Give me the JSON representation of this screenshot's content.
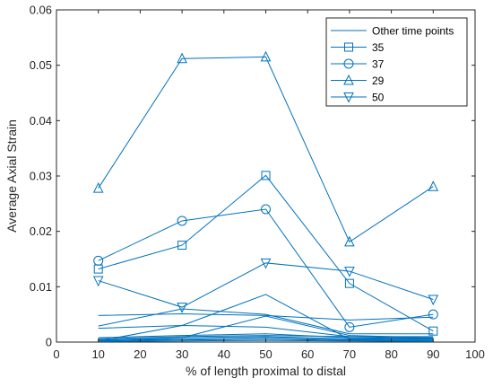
{
  "chart_data": {
    "type": "line",
    "title": "",
    "xlabel": "% of length proximal to distal",
    "ylabel": "Average Axial Strain",
    "xlim": [
      0,
      100
    ],
    "ylim": [
      0,
      0.06
    ],
    "xticks": [
      "0",
      "10",
      "20",
      "30",
      "40",
      "50",
      "60",
      "70",
      "80",
      "90",
      "100"
    ],
    "yticks": [
      "0",
      "0.01",
      "0.02",
      "0.03",
      "0.04",
      "0.05",
      "0.06"
    ],
    "grid": false,
    "legend_position": "top-right",
    "line_color": "#0072bd",
    "x": [
      10,
      30,
      50,
      70,
      90
    ],
    "series": [
      {
        "name": "Other time points",
        "marker": "none",
        "values": [
          0.0048,
          0.0051,
          0.0048,
          0.004,
          0.0045
        ]
      },
      {
        "name": "",
        "marker": "none",
        "values": [
          0.0029,
          0.006,
          0.005,
          0.0015,
          0.0015
        ]
      },
      {
        "name": "",
        "marker": "none",
        "values": [
          0.0025,
          0.003,
          0.0027,
          0.001,
          0.001
        ]
      },
      {
        "name": "",
        "marker": "none",
        "values": [
          0.0002,
          0.003,
          0.0086,
          0.0005,
          0.0005
        ]
      },
      {
        "name": "",
        "marker": "none",
        "values": [
          0.0001,
          0.0008,
          0.0047,
          0.0012,
          0.0008
        ]
      },
      {
        "name": "",
        "marker": "none",
        "values": [
          0.0008,
          0.0012,
          0.0015,
          0.0008,
          0.0006
        ]
      },
      {
        "name": "",
        "marker": "none",
        "values": [
          0.0006,
          0.001,
          0.0012,
          0.001,
          0.0007
        ]
      },
      {
        "name": "",
        "marker": "none",
        "values": [
          0.0004,
          0.0008,
          0.001,
          0.0006,
          0.0005
        ]
      },
      {
        "name": "",
        "marker": "none",
        "values": [
          0.0003,
          0.0005,
          0.0008,
          0.0004,
          0.0003
        ]
      },
      {
        "name": "",
        "marker": "none",
        "values": [
          0.0002,
          0.0004,
          0.0005,
          0.0003,
          0.0002
        ]
      },
      {
        "name": "",
        "marker": "none",
        "values": [
          0.0001,
          0.0002,
          0.0003,
          0.0002,
          0.0001
        ]
      },
      {
        "name": "35",
        "marker": "square",
        "values": [
          0.0132,
          0.0175,
          0.0301,
          0.0106,
          0.002
        ]
      },
      {
        "name": "37",
        "marker": "circle",
        "values": [
          0.0147,
          0.0219,
          0.024,
          0.0027,
          0.005
        ]
      },
      {
        "name": "29",
        "marker": "triangle-up",
        "values": [
          0.0278,
          0.0512,
          0.0515,
          0.0181,
          0.0281
        ]
      },
      {
        "name": "50",
        "marker": "triangle-down",
        "values": [
          0.0111,
          0.0063,
          0.0143,
          0.0128,
          0.0077
        ]
      }
    ],
    "legend": [
      {
        "label": "Other time points",
        "marker": "none"
      },
      {
        "label": "35",
        "marker": "square"
      },
      {
        "label": "37",
        "marker": "circle"
      },
      {
        "label": "29",
        "marker": "triangle-up"
      },
      {
        "label": "50",
        "marker": "triangle-down"
      }
    ]
  }
}
